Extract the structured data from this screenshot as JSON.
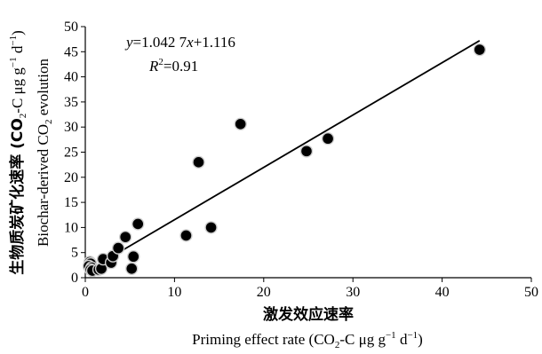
{
  "chart_data": {
    "type": "scatter",
    "title": "",
    "xlabel_cn": "激发效应速率",
    "xlabel_en_main": "Priming effect rate (CO",
    "xlabel_en_sub": "2",
    "xlabel_en_mid": "-C μg g",
    "xlabel_en_sup": "−1",
    "xlabel_en_mid2": " d",
    "xlabel_en_sup2": "−1",
    "xlabel_en_end": ")",
    "ylabel_cn": "生物质炭矿化速率 (CO",
    "ylabel_cn_sub": "2",
    "ylabel_cn_mid": "-C μg g",
    "ylabel_cn_sup": "−1",
    "ylabel_cn_mid2": " d",
    "ylabel_cn_sup2": "−1",
    "ylabel_cn_end": ")",
    "ylabel_en_main": "Biochar-derived CO",
    "ylabel_en_sub": "2",
    "ylabel_en_end": " evolution",
    "xlim": [
      0,
      50
    ],
    "ylim": [
      0,
      50
    ],
    "xticks": [
      0,
      10,
      20,
      30,
      40,
      50
    ],
    "yticks": [
      0,
      5,
      10,
      15,
      20,
      25,
      30,
      35,
      40,
      45,
      50
    ],
    "grid": false,
    "equation_y": "y",
    "equation_mid": "=1.042 7",
    "equation_x": "x",
    "equation_end": "+1.116",
    "r2_label": "R",
    "r2_sup": "2",
    "r2_value": "=0.91",
    "fit": {
      "slope": 1.0427,
      "intercept": 1.116,
      "x_range": [
        3.8,
        44.2
      ]
    },
    "series": [
      {
        "points": [
          [
            0.5,
            3.1
          ],
          [
            0.6,
            2.8
          ],
          [
            0.4,
            2.3
          ],
          [
            0.7,
            2.0
          ],
          [
            0.6,
            1.6
          ],
          [
            0.8,
            1.4
          ],
          [
            1.5,
            1.6
          ],
          [
            1.8,
            1.8
          ],
          [
            2.0,
            3.7
          ],
          [
            2.9,
            3.0
          ],
          [
            3.1,
            4.3
          ],
          [
            3.7,
            5.9
          ],
          [
            4.5,
            8.1
          ],
          [
            5.2,
            1.8
          ],
          [
            5.4,
            4.2
          ],
          [
            5.9,
            10.7
          ],
          [
            11.3,
            8.4
          ],
          [
            12.7,
            23.0
          ],
          [
            14.1,
            10.0
          ],
          [
            17.4,
            30.6
          ],
          [
            24.8,
            25.2
          ],
          [
            27.2,
            27.7
          ],
          [
            44.2,
            45.4
          ]
        ]
      }
    ]
  }
}
